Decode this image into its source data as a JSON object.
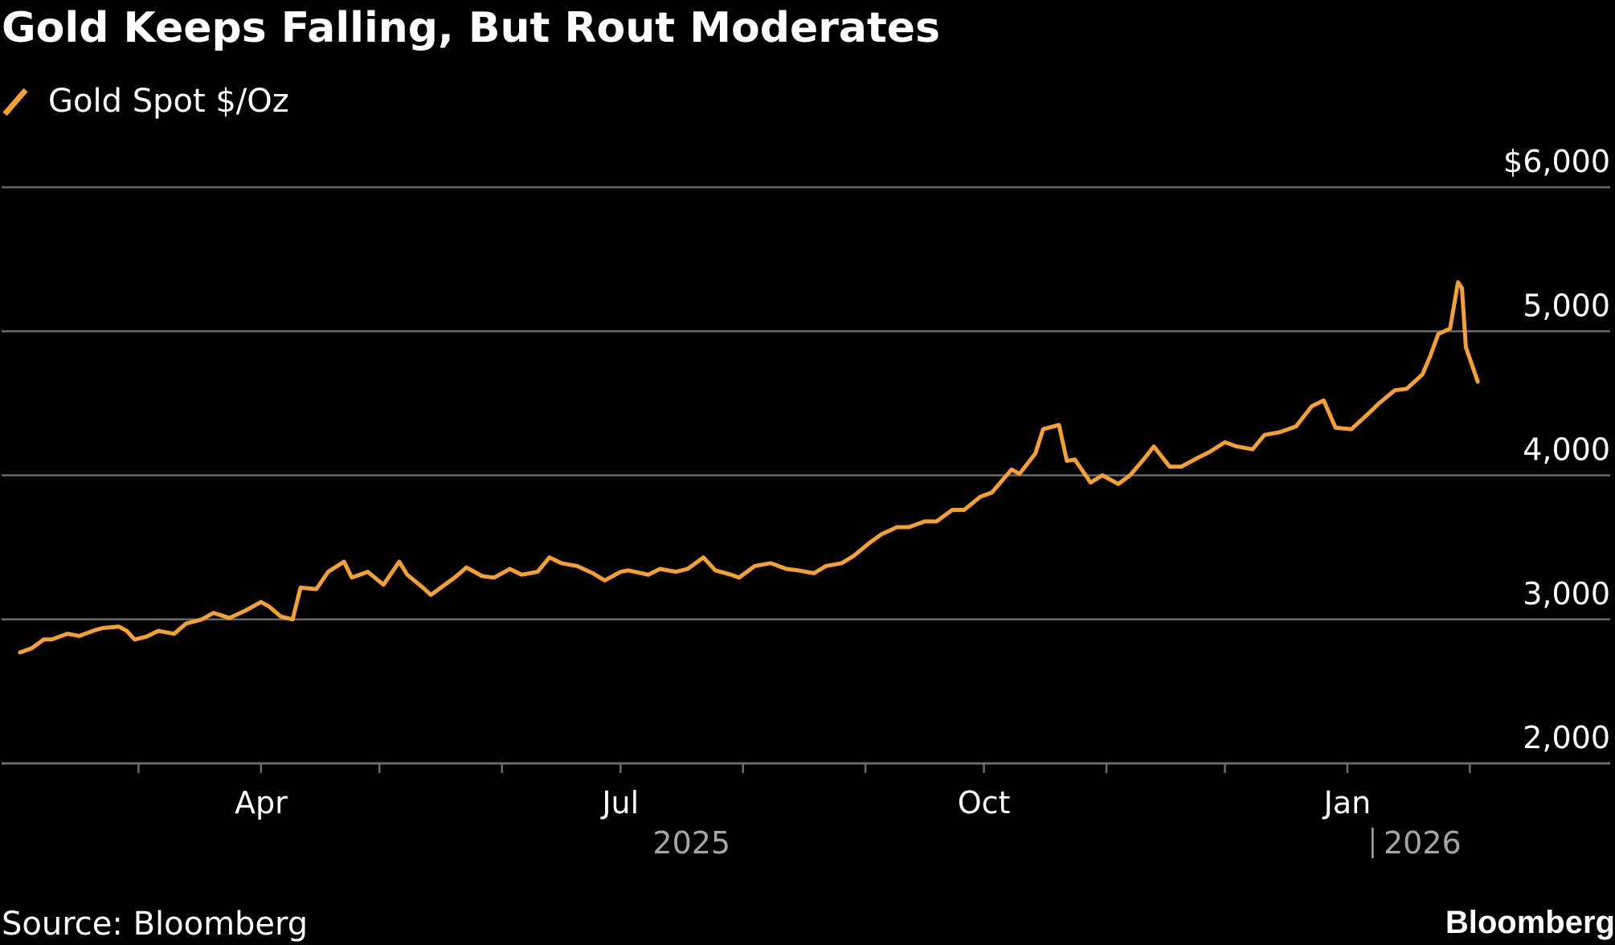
{
  "header": {
    "title": "Gold Keeps Falling, But Rout Moderates"
  },
  "legend": {
    "label": "Gold Spot $/Oz"
  },
  "footer": {
    "source": "Source: Bloomberg",
    "brand": "Bloomberg"
  },
  "colors": {
    "background": "#000000",
    "series": "#f5a030",
    "gridline": "#6b6b6b",
    "text": "#ffffff",
    "year_text": "#a6a6a6"
  },
  "chart_data": {
    "type": "line",
    "title": "Gold Keeps Falling, But Rout Moderates",
    "xlabel": "",
    "ylabel": "",
    "ylim": [
      2000,
      6000
    ],
    "y_ticks": [
      {
        "value": 6000,
        "label": "$6,000"
      },
      {
        "value": 5000,
        "label": "5,000"
      },
      {
        "value": 4000,
        "label": "4,000"
      },
      {
        "value": 3000,
        "label": "3,000"
      },
      {
        "value": 2000,
        "label": "2,000"
      }
    ],
    "x_domain": [
      "2025-01-29",
      "2026-02-05"
    ],
    "x_tick_marks": [
      "2025-03-01",
      "2025-04-01",
      "2025-05-01",
      "2025-06-01",
      "2025-07-01",
      "2025-08-01",
      "2025-09-01",
      "2025-10-01",
      "2025-11-01",
      "2025-12-01",
      "2026-01-01",
      "2026-02-01"
    ],
    "x_labels": [
      {
        "date": "2025-04-01",
        "label": "Apr"
      },
      {
        "date": "2025-07-01",
        "label": "Jul"
      },
      {
        "date": "2025-10-01",
        "label": "Oct"
      },
      {
        "date": "2026-01-01",
        "label": "Jan"
      }
    ],
    "year_labels": [
      {
        "date": "2025-07-19",
        "label": "2025",
        "divider": false
      },
      {
        "date": "2026-01-20",
        "label": "2026",
        "divider": true
      }
    ],
    "grid": true,
    "legend_position": "top-left",
    "series": [
      {
        "name": "Gold Spot $/Oz",
        "points": [
          [
            "2025-01-30",
            2770
          ],
          [
            "2025-02-02",
            2800
          ],
          [
            "2025-02-05",
            2860
          ],
          [
            "2025-02-07",
            2860
          ],
          [
            "2025-02-11",
            2900
          ],
          [
            "2025-02-14",
            2885
          ],
          [
            "2025-02-18",
            2925
          ],
          [
            "2025-02-20",
            2940
          ],
          [
            "2025-02-24",
            2950
          ],
          [
            "2025-02-26",
            2920
          ],
          [
            "2025-02-28",
            2860
          ],
          [
            "2025-03-03",
            2880
          ],
          [
            "2025-03-06",
            2920
          ],
          [
            "2025-03-10",
            2900
          ],
          [
            "2025-03-13",
            2970
          ],
          [
            "2025-03-17",
            3000
          ],
          [
            "2025-03-20",
            3045
          ],
          [
            "2025-03-24",
            3010
          ],
          [
            "2025-03-28",
            3060
          ],
          [
            "2025-04-01",
            3120
          ],
          [
            "2025-04-03",
            3090
          ],
          [
            "2025-04-06",
            3020
          ],
          [
            "2025-04-09",
            3000
          ],
          [
            "2025-04-11",
            3220
          ],
          [
            "2025-04-15",
            3210
          ],
          [
            "2025-04-18",
            3330
          ],
          [
            "2025-04-22",
            3400
          ],
          [
            "2025-04-24",
            3290
          ],
          [
            "2025-04-28",
            3330
          ],
          [
            "2025-05-02",
            3240
          ],
          [
            "2025-05-06",
            3400
          ],
          [
            "2025-05-08",
            3310
          ],
          [
            "2025-05-12",
            3220
          ],
          [
            "2025-05-14",
            3170
          ],
          [
            "2025-05-16",
            3210
          ],
          [
            "2025-05-20",
            3290
          ],
          [
            "2025-05-23",
            3360
          ],
          [
            "2025-05-27",
            3300
          ],
          [
            "2025-05-30",
            3290
          ],
          [
            "2025-06-03",
            3350
          ],
          [
            "2025-06-06",
            3310
          ],
          [
            "2025-06-10",
            3330
          ],
          [
            "2025-06-13",
            3430
          ],
          [
            "2025-06-16",
            3390
          ],
          [
            "2025-06-20",
            3370
          ],
          [
            "2025-06-24",
            3320
          ],
          [
            "2025-06-27",
            3270
          ],
          [
            "2025-07-01",
            3330
          ],
          [
            "2025-07-03",
            3340
          ],
          [
            "2025-07-08",
            3310
          ],
          [
            "2025-07-11",
            3350
          ],
          [
            "2025-07-15",
            3330
          ],
          [
            "2025-07-18",
            3350
          ],
          [
            "2025-07-22",
            3430
          ],
          [
            "2025-07-25",
            3340
          ],
          [
            "2025-07-29",
            3310
          ],
          [
            "2025-07-31",
            3290
          ],
          [
            "2025-08-04",
            3370
          ],
          [
            "2025-08-08",
            3390
          ],
          [
            "2025-08-12",
            3350
          ],
          [
            "2025-08-15",
            3340
          ],
          [
            "2025-08-19",
            3320
          ],
          [
            "2025-08-22",
            3370
          ],
          [
            "2025-08-26",
            3390
          ],
          [
            "2025-08-29",
            3440
          ],
          [
            "2025-09-02",
            3530
          ],
          [
            "2025-09-05",
            3590
          ],
          [
            "2025-09-09",
            3640
          ],
          [
            "2025-09-12",
            3640
          ],
          [
            "2025-09-16",
            3680
          ],
          [
            "2025-09-19",
            3680
          ],
          [
            "2025-09-23",
            3760
          ],
          [
            "2025-09-26",
            3760
          ],
          [
            "2025-09-30",
            3850
          ],
          [
            "2025-10-03",
            3880
          ],
          [
            "2025-10-08",
            4040
          ],
          [
            "2025-10-10",
            4010
          ],
          [
            "2025-10-14",
            4150
          ],
          [
            "2025-10-16",
            4320
          ],
          [
            "2025-10-20",
            4350
          ],
          [
            "2025-10-22",
            4100
          ],
          [
            "2025-10-24",
            4110
          ],
          [
            "2025-10-28",
            3950
          ],
          [
            "2025-10-31",
            4000
          ],
          [
            "2025-11-04",
            3940
          ],
          [
            "2025-11-07",
            4000
          ],
          [
            "2025-11-11",
            4130
          ],
          [
            "2025-11-13",
            4200
          ],
          [
            "2025-11-17",
            4060
          ],
          [
            "2025-11-20",
            4060
          ],
          [
            "2025-11-24",
            4120
          ],
          [
            "2025-11-27",
            4160
          ],
          [
            "2025-12-01",
            4230
          ],
          [
            "2025-12-04",
            4200
          ],
          [
            "2025-12-08",
            4180
          ],
          [
            "2025-12-11",
            4280
          ],
          [
            "2025-12-15",
            4300
          ],
          [
            "2025-12-19",
            4340
          ],
          [
            "2025-12-23",
            4480
          ],
          [
            "2025-12-26",
            4520
          ],
          [
            "2025-12-29",
            4330
          ],
          [
            "2026-01-02",
            4320
          ],
          [
            "2026-01-06",
            4420
          ],
          [
            "2026-01-09",
            4500
          ],
          [
            "2026-01-13",
            4590
          ],
          [
            "2026-01-16",
            4600
          ],
          [
            "2026-01-20",
            4700
          ],
          [
            "2026-01-22",
            4830
          ],
          [
            "2026-01-24",
            4980
          ],
          [
            "2026-01-27",
            5020
          ],
          [
            "2026-01-29",
            5340
          ],
          [
            "2026-01-30",
            5300
          ],
          [
            "2026-01-31",
            4890
          ],
          [
            "2026-02-03",
            4650
          ]
        ]
      }
    ]
  }
}
